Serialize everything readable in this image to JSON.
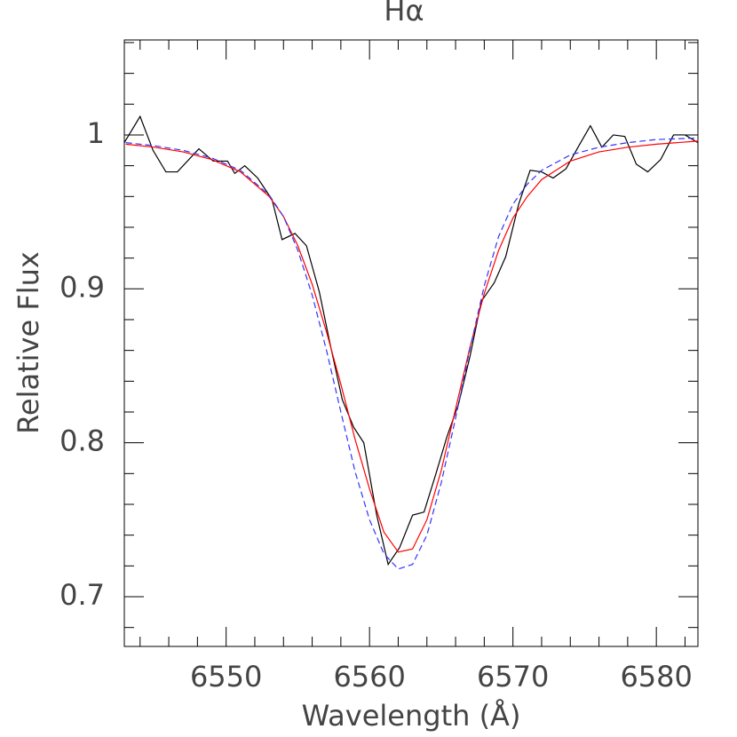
{
  "chart_data": {
    "type": "line",
    "title": "Hα",
    "x_label": "Wavelength (Å)",
    "y_label": "Relative Flux",
    "xlim": [
      6542.9,
      6582.9
    ],
    "ylim": [
      0.6677,
      1.0617
    ],
    "xticks": [
      6550,
      6560,
      6570,
      6580
    ],
    "yticks": [
      {
        "value": 0.7,
        "label": "0.7"
      },
      {
        "value": 0.8,
        "label": "0.8"
      },
      {
        "value": 0.9,
        "label": "0.9"
      },
      1
    ],
    "xminorticks": [
      6544,
      6546,
      6548,
      6552,
      6554,
      6556,
      6558,
      6562,
      6564,
      6566,
      6568,
      6572,
      6574,
      6576,
      6578,
      6582
    ],
    "yminorticks": [
      0.68,
      0.72,
      0.74,
      0.76,
      0.78,
      0.82,
      0.84,
      0.86,
      0.88,
      0.92,
      0.94,
      0.96,
      0.98,
      1.02,
      1.04,
      1.06
    ],
    "series": [
      {
        "color": "#000000",
        "dash": false,
        "x": [
          6542.9,
          6544.0,
          6544.9,
          6545.8,
          6546.6,
          6548.1,
          6549.1,
          6550.1,
          6550.6,
          6551.3,
          6552.2,
          6553.2,
          6553.9,
          6554.8,
          6555.6,
          6556.5,
          6557.3,
          6558.1,
          6558.9,
          6559.6,
          6560.5,
          6561.3,
          6562.1,
          6563.0,
          6563.8,
          6564.6,
          6565.4,
          6566.2,
          6567.0,
          6567.8,
          6568.7,
          6569.5,
          6570.4,
          6571.2,
          6572.0,
          6572.8,
          6573.7,
          6574.6,
          6575.4,
          6576.2,
          6577.0,
          6577.8,
          6578.6,
          6579.4,
          6580.3,
          6581.2,
          6582.0,
          6582.9
        ],
        "values": [
          0.995,
          1.012,
          0.99,
          0.976,
          0.976,
          0.991,
          0.983,
          0.983,
          0.975,
          0.98,
          0.972,
          0.958,
          0.932,
          0.936,
          0.928,
          0.898,
          0.862,
          0.828,
          0.81,
          0.8,
          0.753,
          0.721,
          0.732,
          0.753,
          0.755,
          0.779,
          0.804,
          0.825,
          0.856,
          0.892,
          0.904,
          0.921,
          0.955,
          0.977,
          0.976,
          0.972,
          0.978,
          0.993,
          1.006,
          0.992,
          1.0,
          0.999,
          0.981,
          0.976,
          0.984,
          1.0,
          1.0,
          0.995
        ]
      },
      {
        "color": "#ff0000",
        "dash": false,
        "x": [
          6543,
          6545,
          6547,
          6549,
          6551,
          6553,
          6554,
          6555,
          6556,
          6557,
          6558,
          6559,
          6560,
          6561,
          6562,
          6563,
          6564,
          6565,
          6566,
          6567,
          6568,
          6569,
          6570,
          6571,
          6572,
          6574,
          6576,
          6578,
          6580,
          6582.9
        ],
        "values": [
          0.994,
          0.992,
          0.989,
          0.984,
          0.976,
          0.96,
          0.947,
          0.928,
          0.903,
          0.872,
          0.838,
          0.802,
          0.77,
          0.742,
          0.729,
          0.731,
          0.75,
          0.782,
          0.822,
          0.862,
          0.897,
          0.925,
          0.946,
          0.96,
          0.971,
          0.983,
          0.989,
          0.992,
          0.994,
          0.996
        ]
      },
      {
        "color": "#3333ff",
        "dash": true,
        "x": [
          6543,
          6545,
          6547,
          6549,
          6551,
          6553,
          6554,
          6555,
          6556,
          6557,
          6558,
          6559,
          6560,
          6561,
          6562,
          6563,
          6564,
          6565,
          6566,
          6567,
          6568,
          6569,
          6570,
          6571,
          6572,
          6574,
          6576,
          6578,
          6580,
          6582.9
        ],
        "values": [
          0.995,
          0.993,
          0.99,
          0.985,
          0.977,
          0.961,
          0.947,
          0.925,
          0.896,
          0.86,
          0.82,
          0.781,
          0.75,
          0.728,
          0.718,
          0.721,
          0.74,
          0.774,
          0.816,
          0.861,
          0.902,
          0.934,
          0.955,
          0.968,
          0.977,
          0.987,
          0.992,
          0.995,
          0.997,
          0.998
        ]
      }
    ]
  }
}
